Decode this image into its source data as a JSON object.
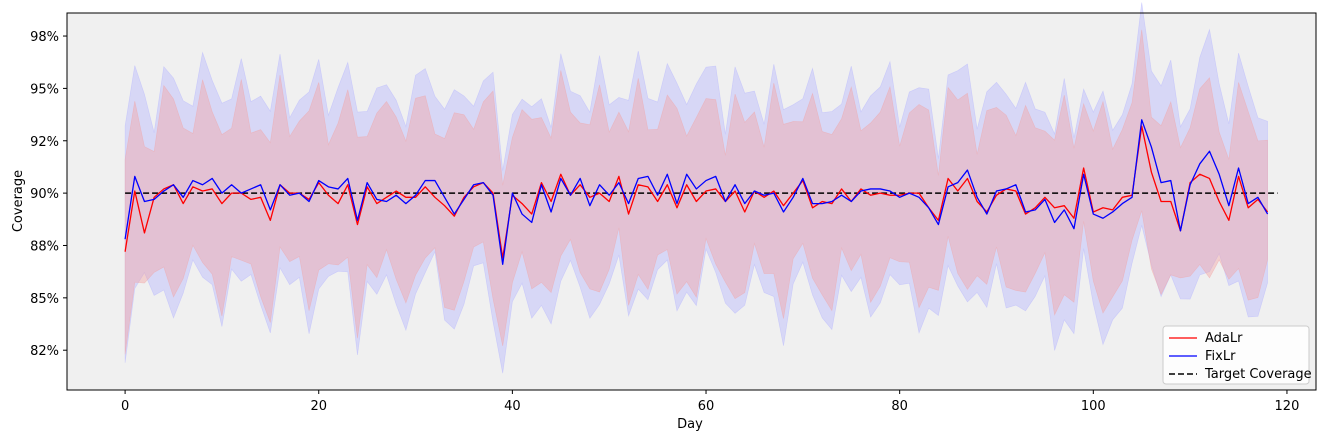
{
  "chart_data": {
    "type": "line",
    "xlabel": "Day",
    "ylabel": "Coverage",
    "xlim": [
      -6,
      123
    ],
    "ylim": [
      80.6,
      98.6
    ],
    "xticks": [
      0,
      20,
      40,
      60,
      80,
      100,
      120
    ],
    "xtick_labels": [
      "0",
      "20",
      "40",
      "60",
      "80",
      "100",
      "120"
    ],
    "yticks": [
      82.5,
      85,
      87.5,
      90,
      92.5,
      95,
      97.5
    ],
    "ytick_labels": [
      "82%",
      "85%",
      "88%",
      "90%",
      "92%",
      "95%",
      "98%"
    ],
    "background": "#f0f0f0",
    "grid": false,
    "legend_position": "bottom-right",
    "target_coverage": 90,
    "series": [
      {
        "name": "AdaLr",
        "color": "#ff0000",
        "band_color": "#f4a3a3",
        "band_half_width": 3.8,
        "values": [
          87.2,
          90.1,
          88.1,
          89.8,
          90.2,
          90.4,
          89.5,
          90.3,
          90.1,
          90.2,
          89.5,
          90.0,
          90.0,
          89.7,
          89.8,
          88.7,
          90.4,
          90.0,
          90.0,
          89.7,
          90.5,
          89.9,
          89.5,
          90.4,
          88.5,
          90.3,
          89.5,
          89.8,
          90.1,
          89.8,
          89.8,
          90.3,
          89.8,
          89.4,
          88.9,
          89.8,
          90.3,
          90.5,
          90.0,
          86.9,
          89.9,
          89.5,
          89.0,
          90.5,
          89.6,
          90.9,
          89.9,
          90.4,
          89.8,
          90.0,
          89.6,
          90.8,
          89.0,
          90.4,
          90.3,
          89.6,
          90.4,
          89.3,
          90.4,
          89.6,
          90.1,
          90.2,
          89.6,
          90.1,
          89.1,
          90.1,
          89.8,
          90.1,
          89.4,
          90.0,
          90.6,
          89.3,
          89.6,
          89.5,
          90.2,
          89.6,
          90.2,
          89.9,
          90.0,
          89.9,
          89.9,
          90.0,
          90.0,
          89.3,
          88.7,
          90.7,
          90.1,
          90.7,
          89.6,
          89.1,
          89.9,
          90.2,
          90.1,
          89.0,
          89.3,
          89.8,
          89.3,
          89.4,
          88.8,
          91.2,
          89.1,
          89.3,
          89.2,
          89.8,
          89.9,
          93.2,
          91.0,
          89.6,
          89.6,
          88.2,
          90.5,
          90.9,
          90.7,
          89.6,
          88.7,
          90.8,
          89.3,
          89.7,
          89.1
        ]
      },
      {
        "name": "FixLr",
        "color": "#0000ff",
        "band_color": "#b4b4ff",
        "band_half_width": 4.8,
        "values": [
          87.8,
          90.8,
          89.6,
          89.7,
          90.1,
          90.4,
          89.8,
          90.6,
          90.4,
          90.7,
          90.0,
          90.4,
          90.0,
          90.2,
          90.4,
          89.2,
          90.4,
          89.9,
          90.0,
          89.6,
          90.6,
          90.3,
          90.2,
          90.7,
          88.7,
          90.5,
          89.7,
          89.6,
          89.9,
          89.5,
          89.9,
          90.6,
          90.6,
          89.8,
          89.0,
          89.7,
          90.4,
          90.5,
          89.9,
          86.6,
          90.0,
          89.0,
          88.6,
          90.4,
          89.1,
          90.7,
          89.9,
          90.7,
          89.4,
          90.4,
          89.9,
          90.5,
          89.5,
          90.7,
          90.8,
          89.9,
          90.9,
          89.5,
          90.9,
          90.2,
          90.6,
          90.8,
          89.6,
          90.4,
          89.5,
          90.1,
          89.9,
          90.0,
          89.1,
          89.8,
          90.7,
          89.5,
          89.5,
          89.6,
          89.9,
          89.6,
          90.1,
          90.2,
          90.2,
          90.1,
          89.8,
          90.0,
          89.8,
          89.3,
          88.5,
          90.3,
          90.5,
          91.1,
          89.8,
          89.0,
          90.1,
          90.2,
          90.4,
          89.1,
          89.2,
          89.7,
          88.6,
          89.2,
          88.3,
          90.9,
          89.0,
          88.8,
          89.1,
          89.5,
          89.8,
          93.5,
          92.2,
          90.5,
          90.6,
          88.2,
          90.4,
          91.4,
          92.0,
          90.9,
          89.4,
          91.2,
          89.5,
          89.8,
          89.0
        ]
      }
    ],
    "legend": [
      {
        "label": "AdaLr",
        "color": "#ff0000",
        "style": "solid"
      },
      {
        "label": "FixLr",
        "color": "#0000ff",
        "style": "solid"
      },
      {
        "label": "Target Coverage",
        "color": "#000000",
        "style": "dashed"
      }
    ]
  }
}
